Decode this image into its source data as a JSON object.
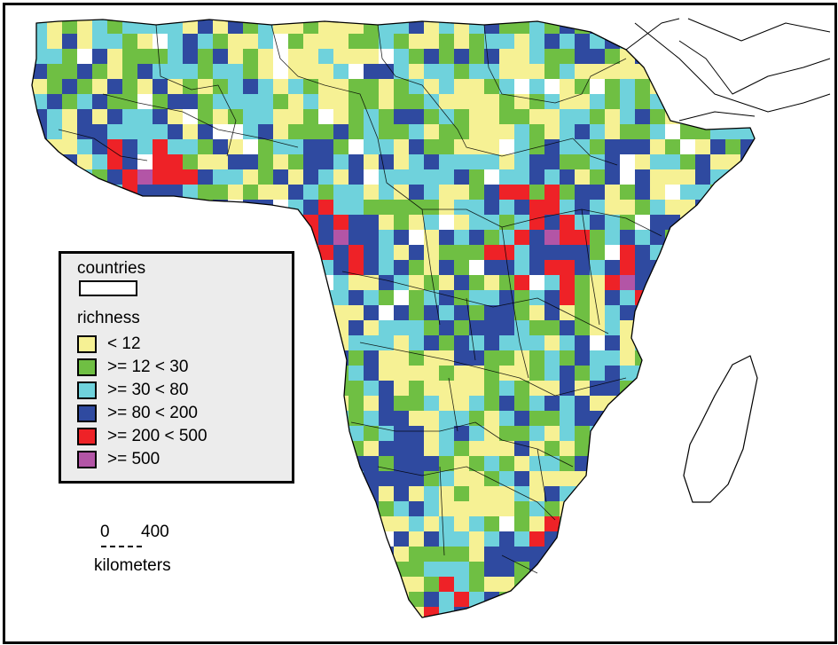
{
  "map": {
    "colors": {
      "lt12": "#f6f194",
      "12to30": "#6fbf43",
      "30to80": "#6fd2dc",
      "80to200": "#2f4aa0",
      "200to500": "#ee2227",
      "gte500": "#b355a6",
      "coastline": "#000000",
      "ocean": "#ffffff"
    }
  },
  "legend": {
    "countries_label": "countries",
    "richness_label": "richness",
    "classes": [
      {
        "label": "< 12",
        "color": "#f6f194"
      },
      {
        "label": ">= 12 < 30",
        "color": "#6fbf43"
      },
      {
        "label": ">= 30 < 80",
        "color": "#6fd2dc"
      },
      {
        "label": ">= 80 < 200",
        "color": "#2f4aa0"
      },
      {
        "label": ">= 200 < 500",
        "color": "#ee2227"
      },
      {
        "label": ">= 500",
        "color": "#b355a6"
      }
    ]
  },
  "scale_bar": {
    "min_label": "0",
    "max_label": "400",
    "unit": "kilometers"
  }
}
